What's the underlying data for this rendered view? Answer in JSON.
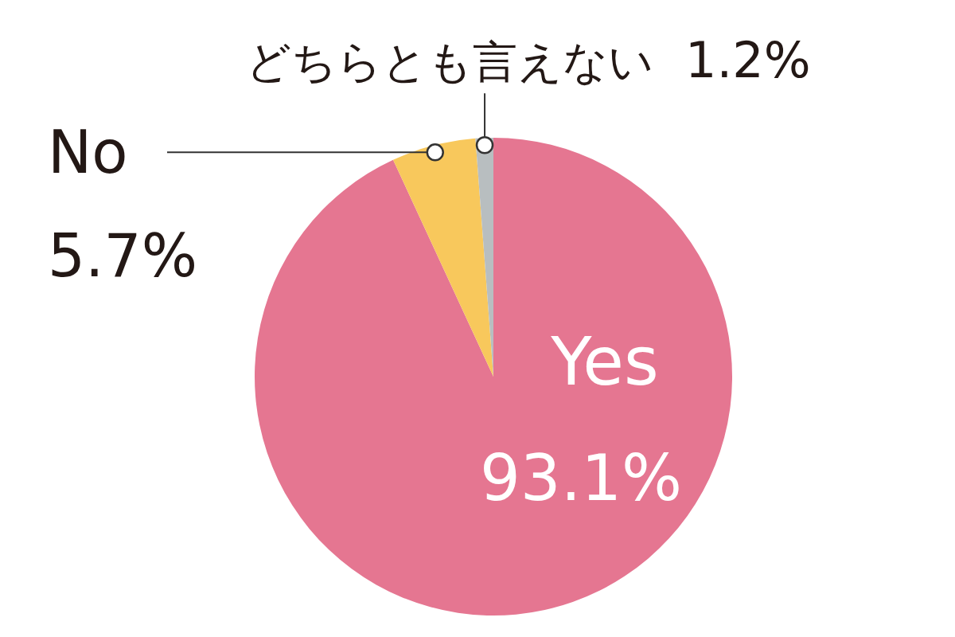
{
  "chart_data": {
    "type": "pie",
    "categories": [
      "Yes",
      "No",
      "どちらとも言えない"
    ],
    "values": [
      93.1,
      5.7,
      1.2
    ],
    "colors": [
      "#e57691",
      "#f8c85c",
      "#b8bec0"
    ],
    "value_labels": [
      "93.1%",
      "5.7%",
      "1.2%"
    ]
  }
}
